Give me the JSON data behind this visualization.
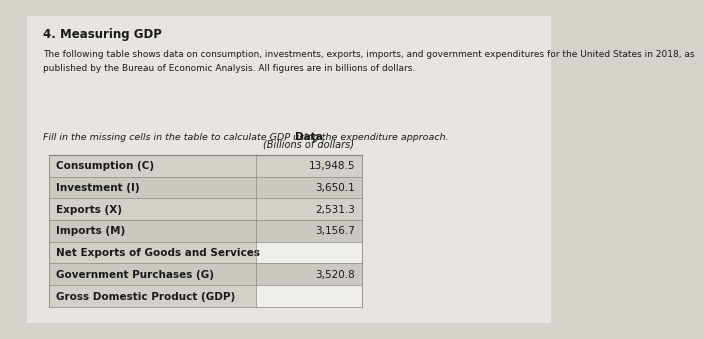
{
  "title": "4. Measuring GDP",
  "intro_text": "The following table shows data on consumption, investments, exports, imports, and government expenditures for the United States in 2018, as\npublished by the Bureau of Economic Analysis. All figures are in billions of dollars.",
  "fill_text": "Fill in the missing cells in the table to calculate GDP using the expenditure approach.",
  "col_header1": "Data",
  "col_header2": "(Billions of dollars)",
  "rows": [
    {
      "label": "Consumption (C)",
      "value": "13,948.5",
      "blank": false
    },
    {
      "label": "Investment (I)",
      "value": "3,650.1",
      "blank": false
    },
    {
      "label": "Exports (X)",
      "value": "2,531.3",
      "blank": false
    },
    {
      "label": "Imports (M)",
      "value": "3,156.7",
      "blank": false
    },
    {
      "label": "Net Exports of Goods and Services",
      "value": "",
      "blank": true
    },
    {
      "label": "Government Purchases (G)",
      "value": "3,520.8",
      "blank": false
    },
    {
      "label": "Gross Domestic Product (GDP)",
      "value": "",
      "blank": true
    }
  ],
  "bg_color": "#d6d3cd",
  "panel_color": "#e8e5e0",
  "cell_fill_even": "#d4d0c9",
  "cell_fill_odd": "#cbc8c1",
  "blank_cell_color": "#f0eeea",
  "title_color": "#1a1a1a",
  "text_color": "#1a1a1a",
  "label_fontsize": 7.5,
  "title_fontsize": 8.5
}
